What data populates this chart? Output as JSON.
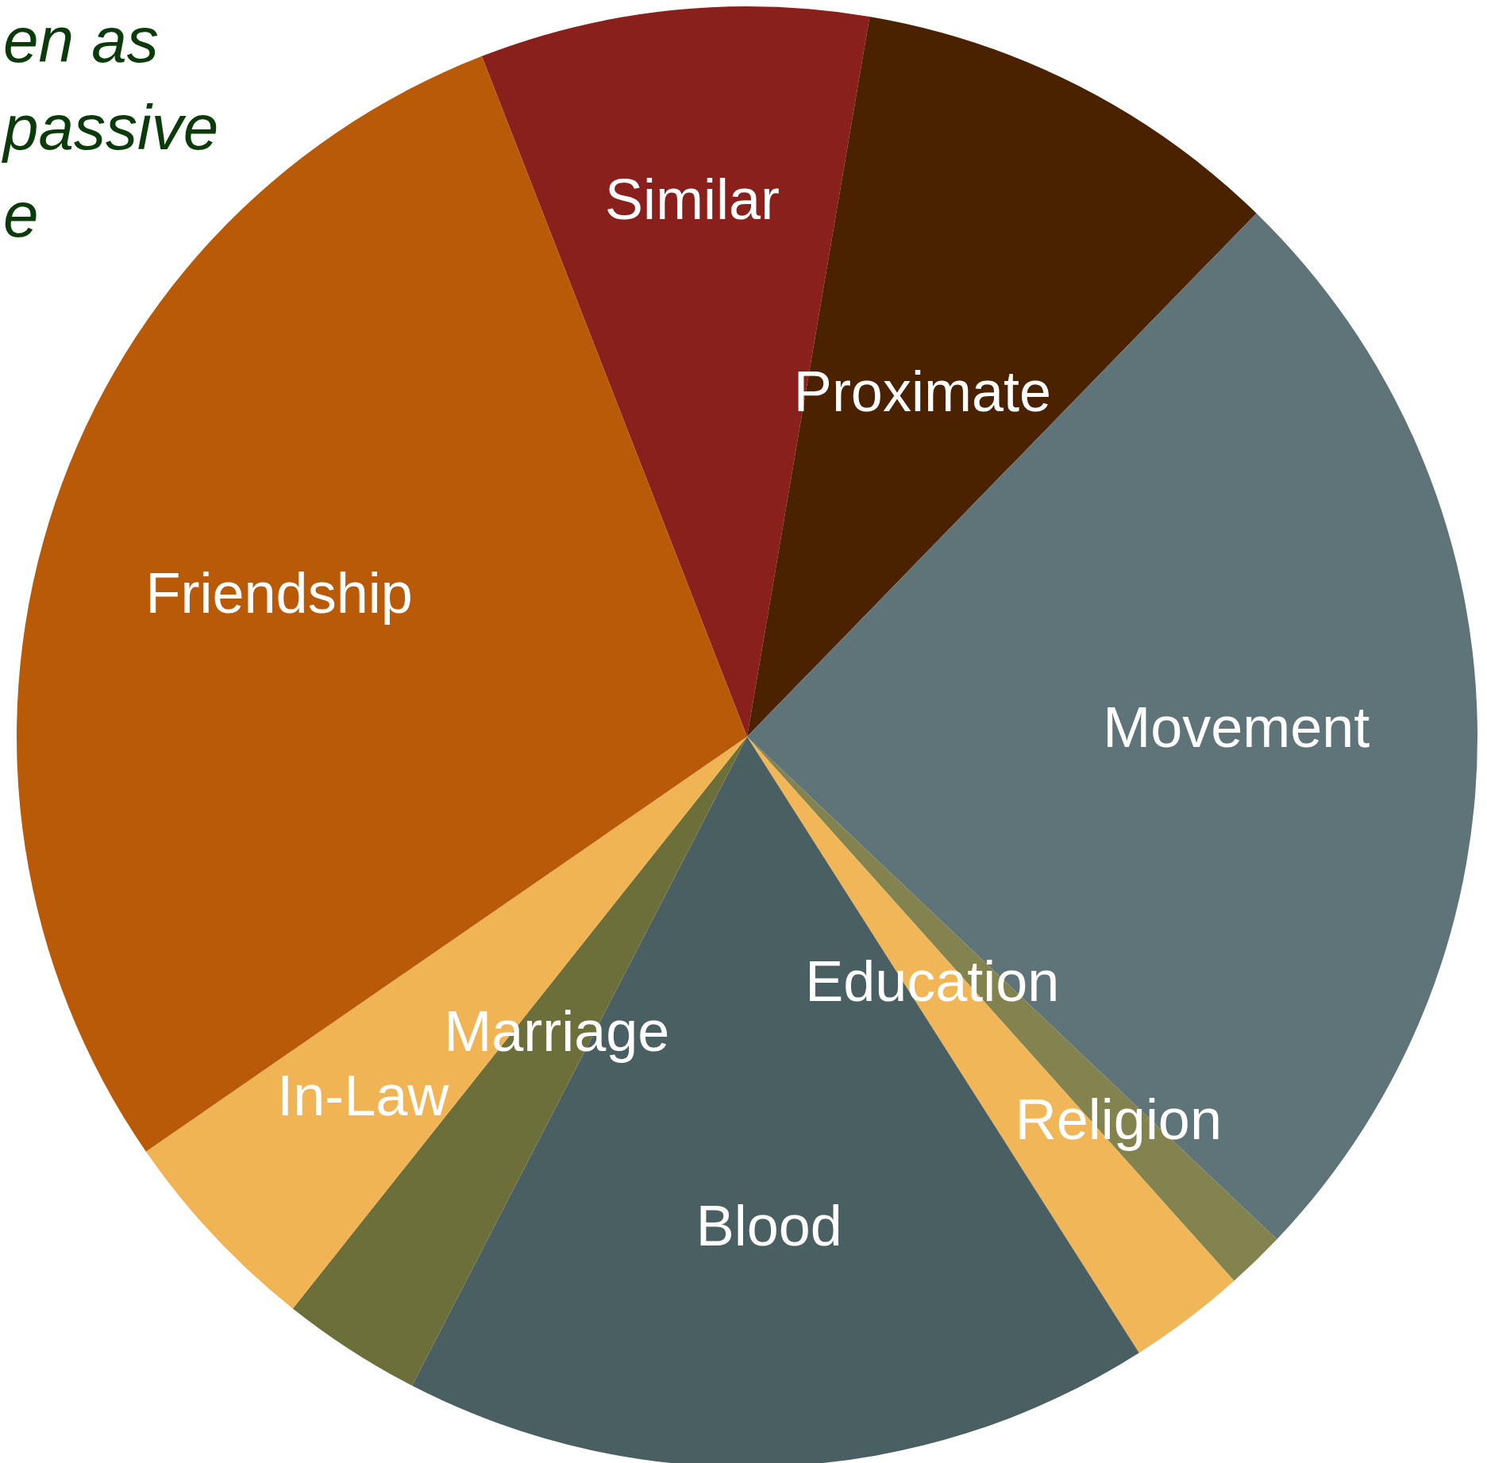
{
  "chart_data": {
    "type": "pie",
    "categories": [
      "Similar",
      "Proximate",
      "Movement",
      "Religion",
      "Education",
      "Blood",
      "Marriage",
      "In-Law",
      "Friendship"
    ],
    "values": [
      8.6,
      9.6,
      24.8,
      1.3,
      2.6,
      16.6,
      3.1,
      4.7,
      28.7
    ],
    "colors": [
      "#8a201c",
      "#4a2200",
      "#5e7478",
      "#82834e",
      "#f0b658",
      "#4a5f62",
      "#6d6f3b",
      "#f0b455",
      "#b95a08"
    ],
    "annotations": [
      "en as",
      "passive",
      "e"
    ]
  }
}
